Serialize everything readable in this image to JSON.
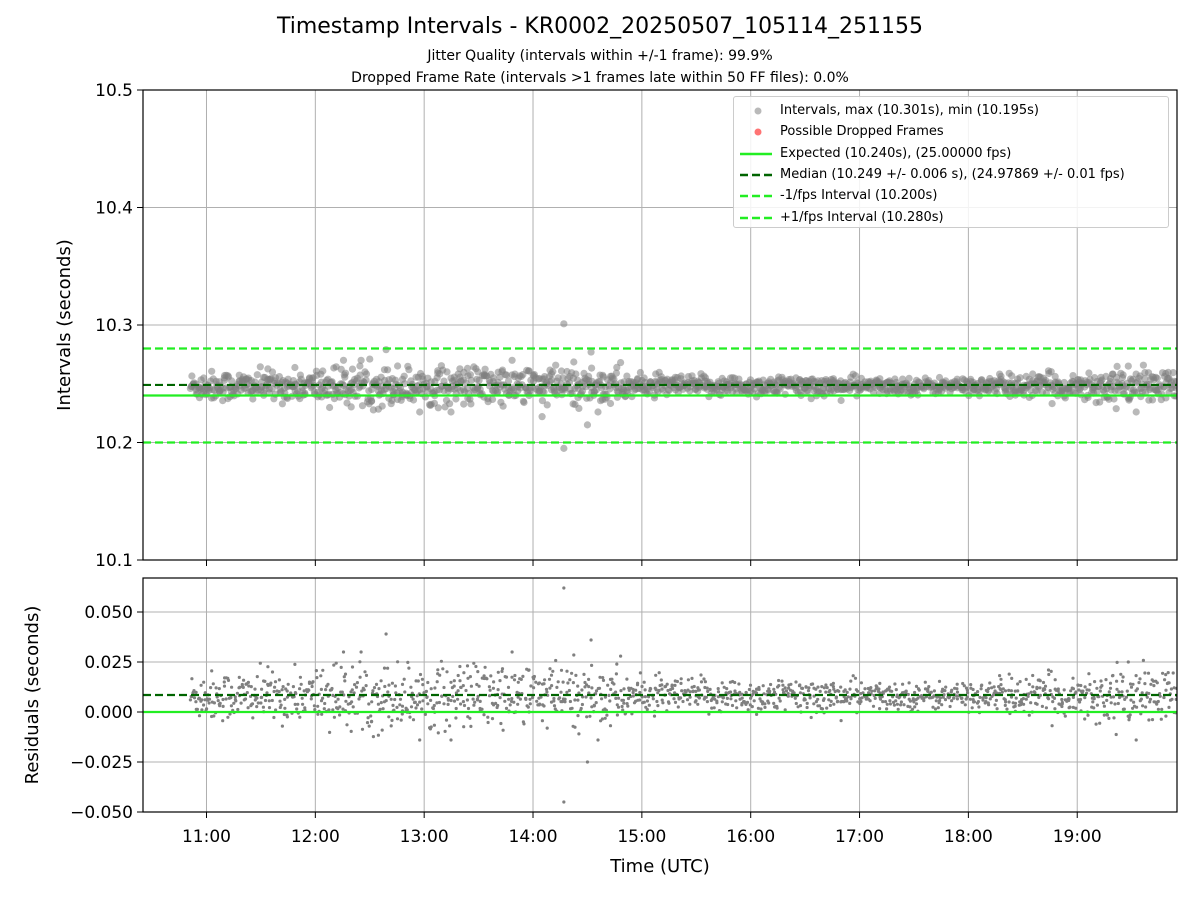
{
  "figure": {
    "title": "Timestamp Intervals - KR0002_20250507_105114_251155",
    "subtitle_jitter": "Jitter Quality (intervals within +/-1 frame): 99.9%",
    "subtitle_dropped": "Dropped Frame Rate (intervals >1 frames late within 50 FF files): 0.0%"
  },
  "legend": [
    {
      "label": "Intervals, max (10.301s), min (10.195s)",
      "kind": "marker",
      "color": "#808080"
    },
    {
      "label": "Possible Dropped Frames",
      "kind": "marker",
      "color": "#ff0000"
    },
    {
      "label": "Expected (10.240s), (25.00000 fps)",
      "kind": "solid",
      "color": "#22ee22"
    },
    {
      "label": "Median (10.249 +/- 0.006 s), (24.97869 +/- 0.01 fps)",
      "kind": "dashed",
      "color": "#006400"
    },
    {
      "label": "-1/fps Interval (10.200s)",
      "kind": "dashed",
      "color": "#22ee22"
    },
    {
      "label": "+1/fps Interval (10.280s)",
      "kind": "dashed",
      "color": "#22ee22"
    }
  ],
  "chart_data": [
    {
      "type": "scatter",
      "panel": "intervals",
      "xlabel": "",
      "ylabel": "Intervals (seconds)",
      "x_axis": "time",
      "xlim": [
        "10:25",
        "19:55"
      ],
      "ylim": [
        10.1,
        10.5
      ],
      "yticks": [
        "10.1",
        "10.2",
        "10.3",
        "10.4",
        "10.5"
      ],
      "grid": true,
      "legend_position": "top-right",
      "reference_lines": [
        {
          "name": "Expected",
          "y": 10.24,
          "style": "solid",
          "color": "#22ee22"
        },
        {
          "name": "Median",
          "y": 10.249,
          "style": "dashed",
          "color": "#006400"
        },
        {
          "name": "-1/fps Interval",
          "y": 10.2,
          "style": "dashed",
          "color": "#22ee22"
        },
        {
          "name": "+1/fps Interval",
          "y": 10.28,
          "style": "dashed",
          "color": "#22ee22"
        }
      ],
      "series": [
        {
          "name": "Intervals",
          "color": "#808080",
          "x_range": [
            "10:51",
            "19:55"
          ],
          "center": 10.248,
          "max": 10.301,
          "min": 10.195,
          "outliers": [
            {
              "x": "14:17",
              "y": 10.301
            },
            {
              "x": "14:17",
              "y": 10.195
            },
            {
              "x": "12:39",
              "y": 10.279
            },
            {
              "x": "14:32",
              "y": 10.277
            },
            {
              "x": "12:30",
              "y": 10.271
            },
            {
              "x": "14:30",
              "y": 10.215
            },
            {
              "x": "14:05",
              "y": 10.222
            }
          ]
        },
        {
          "name": "Possible Dropped Frames",
          "color": "#ff0000",
          "points": []
        }
      ]
    },
    {
      "type": "scatter",
      "panel": "residuals",
      "xlabel": "Time (UTC)",
      "ylabel": "Residuals (seconds)",
      "x_axis": "time",
      "xlim": [
        "10:25",
        "19:55"
      ],
      "xticks": [
        "11:00",
        "12:00",
        "13:00",
        "14:00",
        "15:00",
        "16:00",
        "17:00",
        "18:00",
        "19:00"
      ],
      "ylim": [
        -0.05,
        0.067
      ],
      "yticks": [
        "−0.050",
        "−0.025",
        "0.000",
        "0.025",
        "0.050"
      ],
      "grid": true,
      "reference_lines": [
        {
          "name": "Expected",
          "y": 0.0,
          "style": "solid",
          "color": "#22ee22"
        },
        {
          "name": "Median",
          "y": 0.0085,
          "style": "dashed",
          "color": "#006400"
        }
      ],
      "series": [
        {
          "name": "Residuals",
          "color": "#808080",
          "x_range": [
            "10:51",
            "19:55"
          ],
          "center": 0.008,
          "max": 0.062,
          "min": -0.045,
          "outliers": [
            {
              "x": "14:17",
              "y": 0.062
            },
            {
              "x": "14:17",
              "y": -0.045
            },
            {
              "x": "12:39",
              "y": 0.039
            },
            {
              "x": "14:32",
              "y": 0.036
            },
            {
              "x": "14:30",
              "y": -0.025
            }
          ]
        }
      ]
    }
  ]
}
